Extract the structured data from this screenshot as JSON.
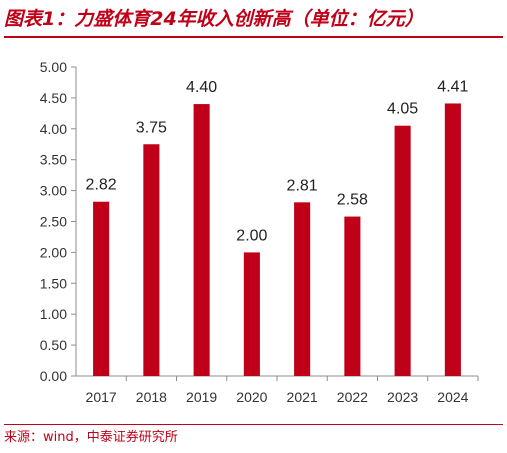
{
  "header": {
    "title": "图表1：力盛体育24年收入创新高（单位：亿元）"
  },
  "footer": {
    "source": "来源：wind，中泰证券研究所"
  },
  "chart_data": {
    "type": "bar",
    "title": "图表1：力盛体育24年收入创新高（单位：亿元）",
    "xlabel": "",
    "ylabel": "",
    "categories": [
      "2017",
      "2018",
      "2019",
      "2020",
      "2021",
      "2022",
      "2023",
      "2024"
    ],
    "values": [
      2.82,
      3.75,
      4.4,
      2.0,
      2.81,
      2.58,
      4.05,
      4.41
    ],
    "value_labels": [
      "2.82",
      "3.75",
      "4.40",
      "2.00",
      "2.81",
      "2.58",
      "4.05",
      "4.41"
    ],
    "ylim": [
      0,
      5
    ],
    "yticks": [
      "0.00",
      "0.50",
      "1.00",
      "1.50",
      "2.00",
      "2.50",
      "3.00",
      "3.50",
      "4.00",
      "4.50",
      "5.00"
    ],
    "grid": false,
    "legend": "none",
    "bar_color": "#c00018",
    "accent_color": "#c00018"
  }
}
